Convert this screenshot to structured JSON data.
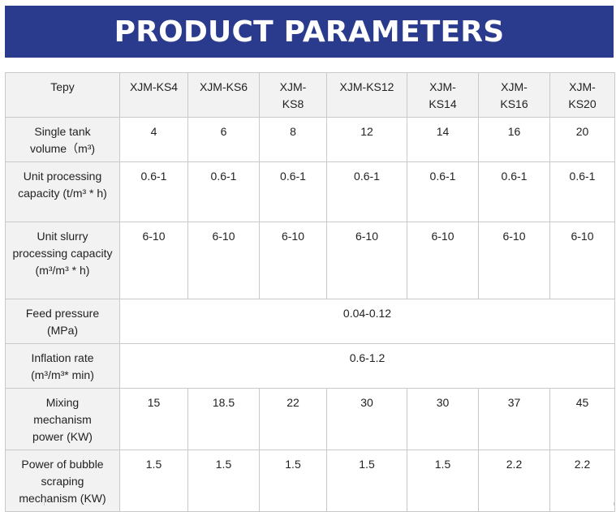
{
  "banner": {
    "title": "PRODUCT PARAMETERS"
  },
  "table": {
    "header": {
      "label": "Tepy",
      "models": [
        "XJM-KS4",
        "XJM-KS6",
        "XJM-KS8",
        "XJM-KS12",
        "XJM-KS14",
        "XJM-KS16",
        "XJM-KS20"
      ]
    },
    "rows": [
      {
        "label": "Single tank volume（m³)",
        "values": [
          "4",
          "6",
          "8",
          "12",
          "14",
          "16",
          "20"
        ]
      },
      {
        "label": "Unit processing capacity (t/m³ * h)",
        "values": [
          "0.6-1",
          "0.6-1",
          "0.6-1",
          "0.6-1",
          "0.6-1",
          "0.6-1",
          "0.6-1"
        ]
      },
      {
        "label": "Unit slurry processing capacity (m³/m³ * h)",
        "values": [
          "6-10",
          "6-10",
          "6-10",
          "6-10",
          "6-10",
          "6-10",
          "6-10"
        ]
      },
      {
        "label": "Feed pressure (MPa)",
        "merged": "0.04-0.12"
      },
      {
        "label": "Inflation rate (m³/m³* min)",
        "merged": "0.6-1.2"
      },
      {
        "label": "Mixing mechanism power (KW)",
        "values": [
          "15",
          "18.5",
          "22",
          "30",
          "30",
          "37",
          "45"
        ]
      },
      {
        "label": "Power of bubble scraping mechanism (KW)",
        "values": [
          "1.5",
          "1.5",
          "1.5",
          "1.5",
          "1.5",
          "2.2",
          "2.2"
        ]
      }
    ]
  }
}
